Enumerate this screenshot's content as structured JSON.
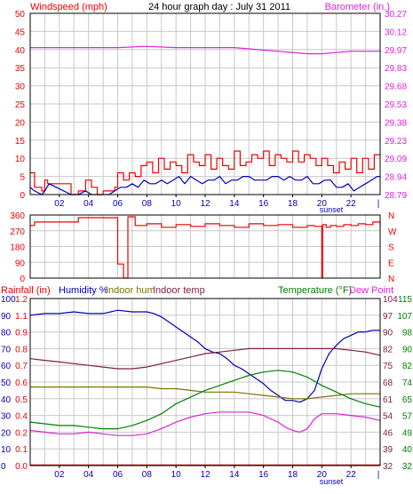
{
  "colors": {
    "background": "#ffffff",
    "plot_background": "#ffffff",
    "grid": "#c8c8c8",
    "frame": "#000000",
    "red": "#ee0000",
    "magenta": "#dd22dd",
    "blue": "#0000bb",
    "olive": "#807000",
    "maroon": "#802040",
    "green": "#008000",
    "black": "#000000"
  },
  "chart_data": [
    {
      "id": "wind_baro",
      "type": "line",
      "title": "24 hour graph day : July 31 2011",
      "left_label": "Windspeed (mph)",
      "right_label": "Barometer (in.)",
      "x_tick_labels": [
        "02",
        "04",
        "06",
        "08",
        "10",
        "12",
        "14",
        "16",
        "18",
        "20",
        "22"
      ],
      "x_extra_label": "sunset",
      "xlim": [
        0,
        24
      ],
      "left_ylim": [
        0,
        50
      ],
      "left_ticks": [
        "0",
        "5",
        "10",
        "15",
        "20",
        "25",
        "30",
        "35",
        "40",
        "45",
        "50"
      ],
      "right_ylim": [
        28.79,
        30.27
      ],
      "right_ticks": [
        "28.79",
        "28.94",
        "29.09",
        "29.23",
        "29.38",
        "29.53",
        "29.68",
        "29.83",
        "29.97",
        "30.12",
        "30.27"
      ],
      "grid": true,
      "series": [
        {
          "axis": "right",
          "color": "magenta",
          "style": "smooth",
          "x": [
            0,
            2,
            4,
            6,
            8,
            10,
            12,
            14,
            16,
            17,
            18,
            19,
            20,
            22,
            24
          ],
          "y": [
            29.99,
            29.99,
            29.99,
            29.99,
            30.0,
            29.99,
            29.99,
            29.99,
            29.97,
            29.96,
            29.95,
            29.94,
            29.94,
            29.96,
            29.96
          ]
        },
        {
          "axis": "left",
          "color": "red",
          "style": "step",
          "x": [
            0,
            0.3,
            0.8,
            1.0,
            1.2,
            1.6,
            2.0,
            2.8,
            3.3,
            3.8,
            4.2,
            4.6,
            5.0,
            5.4,
            5.8,
            6.0,
            6.4,
            6.8,
            7.2,
            7.6,
            8.0,
            8.4,
            8.8,
            9.2,
            9.6,
            10.0,
            10.4,
            10.8,
            11.2,
            11.6,
            12.0,
            12.4,
            12.8,
            13.2,
            13.6,
            14.0,
            14.4,
            14.8,
            15.2,
            15.6,
            16.0,
            16.4,
            16.8,
            17.2,
            17.6,
            18.0,
            18.4,
            18.8,
            19.2,
            19.6,
            20.0,
            20.4,
            20.8,
            21.2,
            21.6,
            22.0,
            22.4,
            22.8,
            23.2,
            23.6,
            24.0
          ],
          "y": [
            6,
            2,
            1,
            4,
            3,
            3,
            3,
            0,
            1,
            4,
            2,
            0,
            1,
            1,
            2,
            6,
            4,
            6,
            5,
            8,
            9,
            6,
            10,
            7,
            9,
            8,
            6,
            11,
            9,
            8,
            11,
            7,
            10,
            8,
            7,
            12,
            8,
            9,
            11,
            10,
            12,
            8,
            11,
            10,
            9,
            12,
            9,
            11,
            10,
            8,
            10,
            8,
            6,
            9,
            7,
            10,
            6,
            10,
            7,
            11,
            11
          ]
        },
        {
          "axis": "left",
          "color": "blue",
          "style": "line",
          "x": [
            0,
            0.3,
            0.8,
            1.0,
            1.3,
            1.8,
            2.3,
            2.8,
            3.3,
            3.8,
            4.2,
            4.6,
            5.0,
            5.4,
            5.8,
            6.2,
            6.6,
            7.0,
            7.4,
            7.8,
            8.2,
            8.6,
            9.0,
            9.4,
            9.8,
            10.2,
            10.6,
            11.0,
            11.4,
            11.8,
            12.2,
            12.6,
            13.0,
            13.4,
            13.8,
            14.2,
            14.6,
            15.0,
            15.4,
            15.8,
            16.2,
            16.6,
            17.0,
            17.4,
            17.8,
            18.2,
            18.6,
            19.0,
            19.4,
            19.8,
            20.2,
            20.6,
            21.0,
            21.4,
            21.8,
            22.2,
            22.6,
            23.0,
            23.4,
            23.8,
            24.0
          ],
          "y": [
            2,
            1,
            0,
            1,
            3,
            2,
            1,
            0,
            0,
            1,
            0,
            0,
            0,
            0,
            1,
            2,
            2,
            3,
            2,
            4,
            3,
            3,
            4,
            3,
            4,
            5,
            3,
            5,
            4,
            3,
            4,
            4,
            5,
            3,
            4,
            4,
            5,
            5,
            4,
            4,
            4,
            5,
            5,
            4,
            5,
            4,
            4,
            5,
            3,
            3,
            4,
            4,
            2,
            2,
            3,
            1,
            2,
            3,
            4,
            5,
            5
          ]
        }
      ]
    },
    {
      "id": "wind_dir",
      "type": "line",
      "title": "",
      "left_ylim": [
        0,
        360
      ],
      "left_ticks": [
        "0",
        "90",
        "180",
        "270",
        "360"
      ],
      "right_ticks": [
        "N",
        "E",
        "S",
        "W",
        "N"
      ],
      "xlim": [
        0,
        24
      ],
      "grid": true,
      "series": [
        {
          "axis": "left",
          "color": "red",
          "style": "step",
          "x": [
            0,
            0.3,
            1.0,
            2.0,
            3.3,
            4.0,
            4.6,
            5.0,
            5.6,
            6.0,
            6.4,
            6.7,
            7.2,
            8.0,
            9.0,
            10.0,
            11.0,
            12.0,
            13.0,
            14.0,
            15.0,
            16.0,
            17.0,
            18.0,
            19.0,
            19.5,
            20.0,
            20.05,
            20.3,
            20.6,
            21.0,
            21.5,
            22.0,
            22.5,
            23.0,
            23.5,
            24.0
          ],
          "y": [
            300,
            320,
            320,
            320,
            345,
            345,
            345,
            345,
            345,
            80,
            0,
            350,
            300,
            310,
            290,
            305,
            295,
            310,
            300,
            290,
            310,
            300,
            305,
            290,
            300,
            295,
            0,
            305,
            290,
            300,
            295,
            305,
            300,
            310,
            305,
            320,
            300
          ]
        }
      ]
    },
    {
      "id": "rain_hum_temp",
      "type": "line",
      "title": "",
      "label_rainfall": "Rainfall (in)",
      "label_humidity": "Humidity %",
      "label_indoor_hum": "Indoor hum",
      "label_indoor_temp": "Indoor temp",
      "label_temperature": "Temperature (°F)",
      "label_dew_point": "Dew Point",
      "x_tick_labels": [
        "02",
        "04",
        "06",
        "08",
        "10",
        "12",
        "14",
        "16",
        "18",
        "20",
        "22"
      ],
      "x_extra_label": "sunset",
      "xlim": [
        0,
        24
      ],
      "humidity_ylim": [
        0,
        100
      ],
      "humidity_ticks": [
        "0",
        "10",
        "20",
        "30",
        "40",
        "50",
        "60",
        "70",
        "80",
        "90",
        "100"
      ],
      "rainfall_ticks": [
        "0.0",
        "0.1",
        "0.2",
        "0.4",
        "0.5",
        "0.6",
        "0.7",
        "0.8",
        "0.9",
        "1.1",
        "1.2"
      ],
      "temp_ylim": [
        32,
        115
      ],
      "temp_ticks_a": [
        "32",
        "40",
        "49",
        "57",
        "65",
        "74",
        "82",
        "90",
        "98",
        "107",
        "115"
      ],
      "temp_ticks_b": [
        "32",
        "39",
        "46",
        "54",
        "61",
        "68",
        "75",
        "82",
        "90",
        "97",
        "104"
      ],
      "grid": true,
      "series": [
        {
          "axis": "humidity",
          "color": "red",
          "style": "line",
          "x": [
            0,
            24
          ],
          "y": [
            0.3,
            0.3
          ]
        },
        {
          "axis": "humidity",
          "color": "blue",
          "style": "line",
          "x": [
            0,
            1,
            2,
            3,
            4,
            5,
            6,
            7,
            8,
            8.5,
            9,
            9.5,
            10,
            10.5,
            11,
            11.5,
            12,
            12.5,
            13,
            13.5,
            14,
            14.5,
            15,
            15.5,
            16,
            16.5,
            17,
            17.5,
            18,
            18.5,
            19,
            19.5,
            20,
            20.5,
            21,
            21.5,
            22,
            22.5,
            23,
            23.5,
            24
          ],
          "y": [
            90,
            91,
            91,
            92,
            91,
            91,
            93,
            92,
            92,
            91,
            89,
            86,
            83,
            80,
            77,
            74,
            70,
            68,
            67,
            64,
            60,
            58,
            55,
            52,
            49,
            45,
            42,
            39,
            39,
            38,
            40,
            45,
            58,
            67,
            72,
            76,
            78,
            80,
            80,
            81,
            81
          ]
        },
        {
          "axis": "humidity",
          "color": "maroon",
          "style": "line",
          "x": [
            0,
            1,
            2,
            3,
            4,
            5,
            6,
            7,
            8,
            9,
            10,
            11,
            12,
            13,
            14,
            15,
            16,
            17,
            18,
            19,
            20,
            21,
            22,
            23,
            24
          ],
          "y": [
            64,
            63,
            62,
            61,
            60,
            59,
            58,
            58,
            59,
            61,
            63,
            65,
            67,
            68,
            69,
            70,
            70,
            70,
            70,
            70,
            70,
            70,
            69,
            68,
            66
          ]
        },
        {
          "axis": "humidity",
          "color": "olive",
          "style": "line",
          "x": [
            0,
            2,
            4,
            6,
            8,
            9,
            10,
            11,
            12,
            13,
            14,
            15,
            16,
            17,
            18,
            19,
            20,
            21,
            22,
            23,
            24
          ],
          "y": [
            47,
            47,
            47,
            47,
            47,
            46,
            46,
            45,
            44,
            44,
            44,
            43,
            42,
            41,
            40,
            40,
            41,
            42,
            43,
            43,
            43
          ]
        },
        {
          "axis": "humidity",
          "color": "green",
          "style": "line",
          "x": [
            0,
            1,
            2,
            3,
            4,
            5,
            6,
            7,
            8,
            9,
            10,
            11,
            12,
            13,
            14,
            15,
            16,
            17,
            18,
            19,
            20,
            21,
            22,
            23,
            24
          ],
          "y": [
            26,
            25,
            24,
            24,
            23,
            22,
            22,
            24,
            27,
            31,
            37,
            41,
            45,
            48,
            51,
            54,
            56,
            57,
            56,
            53,
            48,
            44,
            40,
            37,
            35
          ]
        },
        {
          "axis": "humidity",
          "color": "magenta",
          "style": "line",
          "x": [
            0,
            1,
            2,
            3,
            4,
            5,
            6,
            7,
            8,
            9,
            10,
            11,
            12,
            13,
            14,
            15,
            16,
            16.5,
            17,
            17.5,
            18,
            18.5,
            19,
            19.5,
            20,
            21,
            22,
            23,
            24
          ],
          "y": [
            21,
            20,
            19,
            19,
            20,
            19,
            18,
            18,
            19,
            22,
            26,
            29,
            31,
            32,
            32,
            32,
            30,
            28,
            26,
            23,
            21,
            20,
            22,
            28,
            31,
            31,
            30,
            29,
            27
          ]
        }
      ]
    }
  ]
}
